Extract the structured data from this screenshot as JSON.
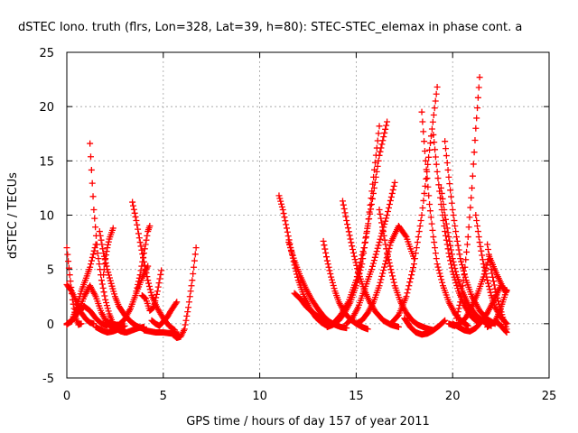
{
  "chart_data": {
    "type": "scatter",
    "title": "dSTEC Iono. truth (flrs, Lon=328, Lat=39, h=80): STEC-STEC_elemax in phase cont. a",
    "xlabel": "GPS time / hours of day 157 of year 2011",
    "ylabel": "dSTEC  / TECUs",
    "xlim": [
      0,
      25
    ],
    "ylim": [
      -5,
      25
    ],
    "xticks": [
      0,
      5,
      10,
      15,
      20,
      25
    ],
    "xtick_labels": [
      "0",
      "5",
      "10",
      "15",
      "20",
      "25"
    ],
    "yticks": [
      -5,
      0,
      5,
      10,
      15,
      20,
      25
    ],
    "ytick_labels": [
      "-5",
      "0",
      "5",
      "10",
      "15",
      "20",
      "25"
    ],
    "grid": true,
    "marker": "plus",
    "color": "#ff0000",
    "arcs": [
      {
        "x": [
          0.0,
          0.15,
          0.3,
          0.45,
          0.6,
          0.75
        ],
        "y": [
          7.0,
          4.5,
          2.2,
          0.6,
          -0.1,
          0.0
        ]
      },
      {
        "x": [
          0.0,
          0.25,
          0.5,
          0.75,
          1.0,
          1.2,
          1.4
        ],
        "y": [
          3.6,
          3.0,
          2.0,
          1.0,
          0.4,
          0.1,
          0.0
        ]
      },
      {
        "x": [
          0.0,
          0.25,
          0.5,
          0.75,
          1.0,
          1.2,
          1.5
        ],
        "y": [
          0.0,
          0.2,
          1.5,
          3.0,
          4.2,
          5.2,
          7.3
        ]
      },
      {
        "x": [
          0.0,
          0.3,
          0.6,
          0.9,
          1.2,
          1.5,
          1.8,
          2.1
        ],
        "y": [
          -0.1,
          0.4,
          1.1,
          1.6,
          1.2,
          0.5,
          0.0,
          -0.2
        ]
      },
      {
        "x": [
          0.6,
          0.9,
          1.2,
          1.5,
          1.8,
          2.1,
          2.4
        ],
        "y": [
          1.0,
          2.5,
          3.5,
          2.5,
          1.0,
          0.0,
          -0.4
        ]
      },
      {
        "x": [
          1.2,
          1.4,
          1.6,
          1.8,
          2.0,
          2.2,
          2.4,
          2.7,
          3.0
        ],
        "y": [
          16.6,
          10.5,
          6.5,
          4.0,
          2.2,
          0.9,
          0.0,
          -0.6,
          -0.8
        ]
      },
      {
        "x": [
          1.5,
          1.8,
          2.1,
          2.4,
          2.7,
          3.0
        ],
        "y": [
          -0.3,
          -0.6,
          -0.8,
          -0.7,
          -0.5,
          -0.2
        ]
      },
      {
        "x": [
          1.7,
          1.9,
          2.1,
          2.3,
          2.5,
          2.7,
          3.0,
          3.3,
          3.6,
          4.0
        ],
        "y": [
          8.5,
          6.5,
          5.0,
          3.7,
          2.5,
          1.6,
          0.8,
          0.2,
          -0.2,
          -0.5
        ]
      },
      {
        "x": [
          1.9,
          2.0,
          2.1,
          2.2,
          2.4
        ],
        "y": [
          4.5,
          6.0,
          7.0,
          7.8,
          8.8
        ]
      },
      {
        "x": [
          2.1,
          2.4,
          2.7,
          3.0,
          3.3,
          3.6,
          3.9,
          4.2
        ],
        "y": [
          0.2,
          -0.1,
          -0.1,
          0.4,
          1.4,
          2.8,
          4.2,
          5.3
        ]
      },
      {
        "x": [
          2.5,
          2.8,
          3.1,
          3.4,
          3.7,
          4.0
        ],
        "y": [
          -0.3,
          -0.7,
          -0.8,
          -0.6,
          -0.4,
          -0.3
        ]
      },
      {
        "x": [
          3.4,
          3.6,
          3.8,
          4.0,
          4.2,
          4.4,
          4.7,
          5.0,
          5.3,
          5.6
        ],
        "y": [
          11.2,
          9.5,
          7.5,
          5.7,
          4.0,
          2.6,
          1.4,
          0.5,
          -0.2,
          -0.6
        ]
      },
      {
        "x": [
          3.6,
          3.8,
          4.0,
          4.2,
          4.3
        ],
        "y": [
          3.0,
          4.5,
          6.5,
          8.5,
          9.0
        ]
      },
      {
        "x": [
          3.9,
          4.1,
          4.3,
          4.5,
          4.7,
          4.9
        ],
        "y": [
          2.6,
          2.3,
          1.2,
          1.5,
          3.0,
          4.9
        ]
      },
      {
        "x": [
          4.0,
          4.3,
          4.6,
          5.0,
          5.4,
          5.8
        ],
        "y": [
          -0.6,
          -0.7,
          -0.8,
          -0.8,
          -0.9,
          -1.0
        ]
      },
      {
        "x": [
          4.4,
          4.6,
          4.8,
          5.0,
          5.2,
          5.4,
          5.7
        ],
        "y": [
          0.3,
          0.0,
          -0.2,
          0.2,
          0.6,
          1.2,
          2.0
        ]
      },
      {
        "x": [
          5.5,
          5.7,
          5.9,
          6.1,
          6.3,
          6.5,
          6.7
        ],
        "y": [
          -1.0,
          -1.3,
          -1.2,
          -0.5,
          1.5,
          4.0,
          7.0
        ]
      },
      {
        "x": [
          11.0,
          11.2,
          11.4,
          11.6,
          11.8,
          12.0,
          12.3,
          12.6,
          12.9,
          13.2,
          13.5
        ],
        "y": [
          11.8,
          10.5,
          8.8,
          7.0,
          5.4,
          4.0,
          2.5,
          1.4,
          0.6,
          0.1,
          -0.2
        ]
      },
      {
        "x": [
          11.5,
          11.8,
          12.1,
          12.4,
          12.7,
          13.0,
          13.3,
          13.6,
          13.9,
          14.2,
          14.5
        ],
        "y": [
          7.5,
          5.8,
          4.4,
          3.2,
          2.2,
          1.4,
          0.7,
          0.2,
          -0.1,
          -0.3,
          -0.4
        ]
      },
      {
        "x": [
          11.8,
          12.1,
          12.4,
          12.7,
          13.0,
          13.3,
          13.6,
          13.9
        ],
        "y": [
          2.8,
          2.3,
          1.6,
          1.1,
          0.7,
          0.3,
          0.1,
          0.0
        ]
      },
      {
        "x": [
          13.3,
          13.5,
          13.7,
          13.9,
          14.1,
          14.4,
          14.7,
          15.0,
          15.3,
          15.6
        ],
        "y": [
          7.6,
          5.8,
          4.3,
          3.0,
          2.0,
          1.0,
          0.4,
          0.0,
          -0.3,
          -0.5
        ]
      },
      {
        "x": [
          13.5,
          13.8,
          14.1,
          14.4,
          14.7,
          15.0,
          15.3,
          15.6,
          15.9,
          16.2
        ],
        "y": [
          -0.3,
          -0.1,
          0.3,
          1.0,
          2.0,
          3.5,
          5.5,
          9.0,
          13.5,
          18.2
        ]
      },
      {
        "x": [
          13.8,
          14.2,
          14.6,
          15.0,
          15.4,
          15.8,
          16.2,
          16.6
        ],
        "y": [
          0.0,
          0.8,
          2.0,
          4.0,
          7.0,
          11.0,
          15.5,
          18.6
        ]
      },
      {
        "x": [
          14.3,
          14.5,
          14.7,
          14.9,
          15.1,
          15.4,
          15.7,
          16.0,
          16.4,
          16.8,
          17.2
        ],
        "y": [
          11.3,
          9.5,
          7.8,
          6.2,
          4.8,
          3.2,
          2.0,
          1.1,
          0.3,
          -0.1,
          -0.3
        ]
      },
      {
        "x": [
          14.5,
          14.8,
          15.1,
          15.4,
          15.8,
          16.2,
          16.6,
          17.0
        ],
        "y": [
          0.0,
          0.5,
          1.5,
          3.0,
          5.0,
          7.5,
          10.0,
          13.0
        ]
      },
      {
        "x": [
          15.0,
          15.3,
          15.6,
          15.9,
          16.2,
          16.5,
          16.8,
          17.2,
          17.6,
          18.0
        ],
        "y": [
          0.0,
          0.3,
          1.0,
          2.0,
          3.5,
          5.5,
          7.5,
          9.0,
          8.0,
          6.0
        ]
      },
      {
        "x": [
          16.2,
          16.4,
          16.6,
          16.8,
          17.0,
          17.3,
          17.6,
          17.9,
          18.2,
          18.6,
          19.0
        ],
        "y": [
          10.5,
          8.5,
          6.5,
          5.0,
          3.5,
          2.0,
          1.0,
          0.3,
          -0.1,
          -0.4,
          -0.6
        ]
      },
      {
        "x": [
          17.5,
          17.8,
          18.1,
          18.4,
          18.7,
          19.0,
          19.3,
          19.6
        ],
        "y": [
          0.5,
          -0.3,
          -0.8,
          -1.0,
          -0.9,
          -0.6,
          -0.2,
          0.3
        ]
      },
      {
        "x": [
          16.8,
          17.2,
          17.6,
          18.0,
          18.4,
          18.8,
          19.2
        ],
        "y": [
          0.0,
          0.8,
          2.5,
          5.5,
          10.0,
          16.0,
          21.8
        ]
      },
      {
        "x": [
          18.4,
          18.6,
          18.8,
          19.0,
          19.2,
          19.5,
          19.8,
          20.1,
          20.4,
          20.8
        ],
        "y": [
          19.5,
          15.0,
          11.0,
          8.0,
          5.5,
          3.5,
          2.0,
          1.0,
          0.3,
          -0.2
        ]
      },
      {
        "x": [
          19.0,
          19.2,
          19.4,
          19.6,
          19.8,
          20.0,
          20.3,
          20.6,
          21.0,
          21.4
        ],
        "y": [
          17.4,
          14.0,
          11.0,
          8.5,
          6.5,
          4.8,
          3.0,
          1.7,
          0.6,
          0.0
        ]
      },
      {
        "x": [
          19.4,
          19.6,
          19.8,
          20.0,
          20.2,
          20.5,
          20.8,
          21.2,
          21.6,
          22.0
        ],
        "y": [
          12.5,
          10.0,
          8.0,
          6.0,
          4.5,
          3.0,
          1.8,
          0.8,
          0.2,
          -0.2
        ]
      },
      {
        "x": [
          19.6,
          19.8,
          20.0,
          20.2,
          20.4,
          20.7,
          21.0,
          21.4,
          21.8,
          22.2
        ],
        "y": [
          16.8,
          13.5,
          10.5,
          8.0,
          6.0,
          4.0,
          2.5,
          1.2,
          0.4,
          0.0
        ]
      },
      {
        "x": [
          19.8,
          20.1,
          20.4,
          20.7,
          21.0,
          21.3,
          21.6,
          21.9,
          22.3,
          22.7
        ],
        "y": [
          0.0,
          -0.2,
          0.0,
          0.6,
          1.6,
          2.8,
          4.3,
          6.2,
          4.5,
          3.0
        ]
      },
      {
        "x": [
          20.0,
          20.3,
          20.6,
          20.9,
          21.2,
          21.5,
          21.8,
          22.1,
          22.5,
          22.8
        ],
        "y": [
          0.0,
          -0.3,
          -0.6,
          -0.7,
          -0.4,
          0.2,
          1.0,
          2.0,
          3.5,
          3.0
        ]
      },
      {
        "x": [
          20.2,
          20.4,
          20.6,
          20.8,
          21.0,
          21.2,
          21.4
        ],
        "y": [
          0.5,
          2.0,
          4.5,
          8.0,
          12.5,
          18.0,
          22.7
        ]
      },
      {
        "x": [
          21.2,
          21.4,
          21.6,
          21.8,
          22.0,
          22.2,
          22.5,
          22.8
        ],
        "y": [
          10.0,
          7.5,
          5.5,
          4.0,
          2.6,
          1.5,
          0.6,
          0.0
        ]
      },
      {
        "x": [
          21.8,
          22.0,
          22.2,
          22.4,
          22.6,
          22.8
        ],
        "y": [
          7.3,
          5.0,
          3.2,
          1.8,
          0.6,
          -0.5
        ]
      },
      {
        "x": [
          21.8,
          22.0,
          22.2,
          22.4,
          22.6,
          22.8
        ],
        "y": [
          -0.3,
          0.0,
          0.2,
          0.0,
          -0.4,
          -0.8
        ]
      },
      {
        "x": [
          22.2,
          22.4,
          22.6,
          22.8
        ],
        "y": [
          0.2,
          1.0,
          2.0,
          3.1
        ]
      }
    ]
  }
}
